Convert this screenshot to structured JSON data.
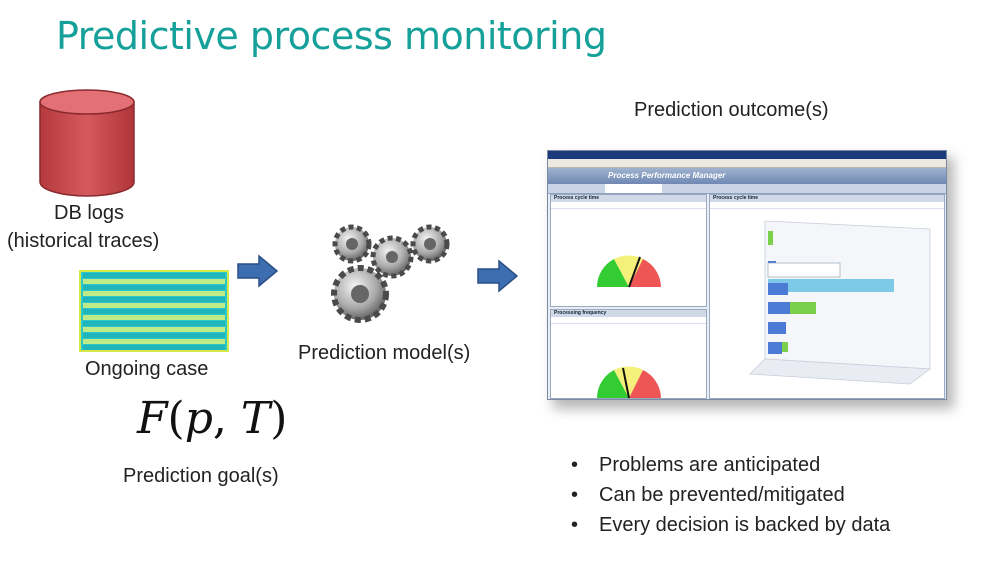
{
  "slide": {
    "title": "Predictive process monitoring",
    "db_label_1": "DB logs",
    "db_label_2": "(historical traces)",
    "ongoing_label": "Ongoing case",
    "model_label": "Prediction model(s)",
    "outcome_label": "Prediction outcome(s)",
    "goal_label": "Prediction goal(s)",
    "formula": {
      "f": "F",
      "open": "(",
      "p": "p",
      "comma": ", ",
      "t": "T",
      "close": ")"
    },
    "bullets": [
      "Problems are anticipated",
      "Can be prevented/mitigated",
      "Every decision is backed by data"
    ]
  },
  "screenshot": {
    "app_title": "Process Performance Manager",
    "panel1_title": "Process cycle time",
    "panel2_title": "Processing frequency",
    "panel3_title": "Process cycle time"
  },
  "colors": {
    "title": "#16a09a",
    "db": "#c9464a",
    "arrow": "#3d6fb0",
    "gauge_green": "#33cc33",
    "gauge_yellow": "#f5f07a",
    "gauge_red": "#ee5555",
    "bar_blue": "#4b7bd4",
    "bar_cyan": "#7ec8e8",
    "bar_green": "#7ad04a"
  },
  "icons": {
    "database": "database-icon",
    "arrow": "right-arrow-icon",
    "gears": "gears-icon"
  }
}
